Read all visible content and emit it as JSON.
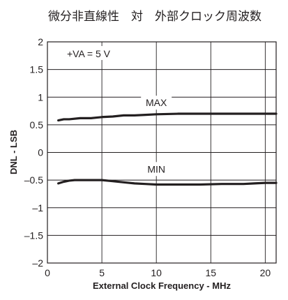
{
  "chart_data": {
    "type": "line",
    "title": "微分非直線性　対　外部クロック周波数",
    "xlabel": "External Clock Frequency - MHz",
    "ylabel": "DNL - LSB",
    "xlim": [
      0,
      21
    ],
    "ylim": [
      -2,
      2
    ],
    "xticks": [
      0,
      5,
      10,
      15,
      20
    ],
    "yticks": [
      2,
      1.5,
      1,
      0.5,
      0,
      -0.5,
      -1,
      -1.5,
      -2
    ],
    "xtick_labels": [
      "0",
      "5",
      "10",
      "15",
      "20"
    ],
    "ytick_labels": [
      "2",
      "1.5",
      "1",
      "0.5",
      "0",
      "–0.5",
      "–1",
      "–1.5",
      "–2"
    ],
    "grid": true,
    "annotation": "+VA = 5 V",
    "series": [
      {
        "name": "MAX",
        "x": [
          1,
          1.5,
          2,
          3,
          4,
          5,
          6,
          7,
          8,
          9,
          10,
          12,
          15,
          18,
          21
        ],
        "y": [
          0.58,
          0.6,
          0.6,
          0.62,
          0.62,
          0.64,
          0.65,
          0.67,
          0.67,
          0.68,
          0.69,
          0.7,
          0.7,
          0.7,
          0.7
        ]
      },
      {
        "name": "MIN",
        "x": [
          1,
          1.5,
          2,
          2.5,
          3,
          4,
          5,
          6,
          7,
          8,
          9,
          10,
          12,
          14,
          16,
          18,
          19,
          20,
          21
        ],
        "y": [
          -0.56,
          -0.53,
          -0.51,
          -0.5,
          -0.5,
          -0.5,
          -0.5,
          -0.52,
          -0.54,
          -0.56,
          -0.57,
          -0.58,
          -0.58,
          -0.58,
          -0.57,
          -0.57,
          -0.56,
          -0.55,
          -0.55
        ]
      }
    ],
    "colors": {
      "line": "#231f20",
      "grid": "#231f20"
    }
  }
}
